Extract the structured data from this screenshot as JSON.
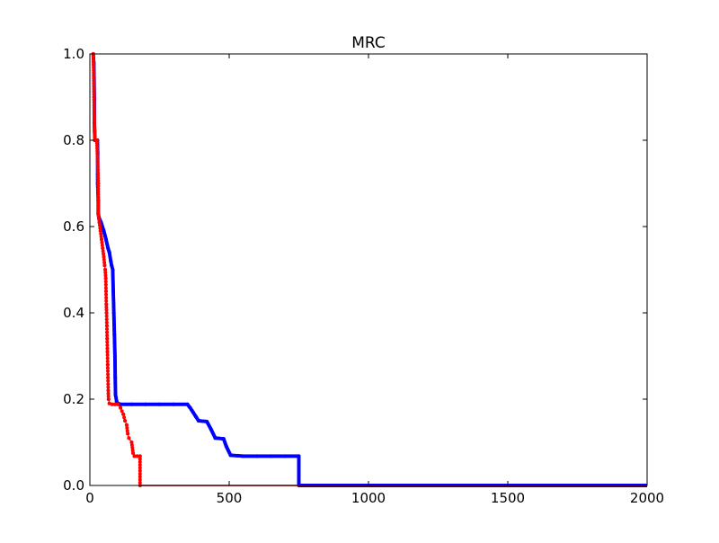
{
  "chart_data": {
    "type": "line",
    "title": "MRC",
    "xlabel": "",
    "ylabel": "",
    "xlim": [
      0,
      2000
    ],
    "ylim": [
      0,
      1.0
    ],
    "x_ticks": [
      "0",
      "500",
      "1000",
      "1500",
      "2000"
    ],
    "y_ticks": [
      "0.0",
      "0.2",
      "0.4",
      "0.6",
      "0.8",
      "1.0"
    ],
    "x_tick_values": [
      0,
      500,
      1000,
      1500,
      2000
    ],
    "y_tick_values": [
      0.0,
      0.2,
      0.4,
      0.6,
      0.8,
      1.0
    ],
    "grid": false,
    "series": [
      {
        "color": "#0000ff",
        "marker": "dot",
        "points": [
          [
            12,
            1.0
          ],
          [
            14,
            0.98
          ],
          [
            15,
            0.945
          ],
          [
            16,
            0.895
          ],
          [
            16,
            0.86
          ],
          [
            16,
            0.84
          ],
          [
            17,
            0.82
          ],
          [
            18,
            0.8
          ],
          [
            25,
            0.8
          ],
          [
            27,
            0.8
          ],
          [
            28,
            0.77
          ],
          [
            28,
            0.72
          ],
          [
            28,
            0.7
          ],
          [
            29,
            0.68
          ],
          [
            30,
            0.66
          ],
          [
            30,
            0.63
          ],
          [
            33,
            0.62
          ],
          [
            40,
            0.61
          ],
          [
            50,
            0.59
          ],
          [
            58,
            0.57
          ],
          [
            65,
            0.55
          ],
          [
            70,
            0.54
          ],
          [
            75,
            0.52
          ],
          [
            78,
            0.51
          ],
          [
            82,
            0.5
          ],
          [
            84,
            0.45
          ],
          [
            86,
            0.4
          ],
          [
            88,
            0.35
          ],
          [
            90,
            0.3
          ],
          [
            91,
            0.25
          ],
          [
            92,
            0.21
          ],
          [
            96,
            0.195
          ],
          [
            100,
            0.19
          ],
          [
            110,
            0.188
          ],
          [
            150,
            0.188
          ],
          [
            200,
            0.188
          ],
          [
            250,
            0.188
          ],
          [
            300,
            0.188
          ],
          [
            350,
            0.188
          ],
          [
            360,
            0.18
          ],
          [
            370,
            0.17
          ],
          [
            380,
            0.16
          ],
          [
            390,
            0.15
          ],
          [
            420,
            0.148
          ],
          [
            435,
            0.13
          ],
          [
            450,
            0.11
          ],
          [
            480,
            0.108
          ],
          [
            490,
            0.09
          ],
          [
            505,
            0.07
          ],
          [
            550,
            0.068
          ],
          [
            600,
            0.068
          ],
          [
            650,
            0.068
          ],
          [
            700,
            0.068
          ],
          [
            750,
            0.068
          ],
          [
            750,
            0.0
          ],
          [
            800,
            0.0
          ],
          [
            900,
            0.0
          ],
          [
            1000,
            0.0
          ],
          [
            1100,
            0.0
          ],
          [
            1200,
            0.0
          ],
          [
            1300,
            0.0
          ],
          [
            1400,
            0.0
          ],
          [
            1500,
            0.0
          ],
          [
            1600,
            0.0
          ],
          [
            1700,
            0.0
          ],
          [
            1800,
            0.0
          ],
          [
            1900,
            0.0
          ],
          [
            2000,
            0.0
          ]
        ]
      },
      {
        "color": "#ff0000",
        "marker": "dot",
        "points": [
          [
            12,
            1.0
          ],
          [
            14,
            0.95
          ],
          [
            15,
            0.9
          ],
          [
            16,
            0.85
          ],
          [
            18,
            0.8
          ],
          [
            25,
            0.8
          ],
          [
            28,
            0.75
          ],
          [
            30,
            0.7
          ],
          [
            30,
            0.63
          ],
          [
            34,
            0.61
          ],
          [
            38,
            0.59
          ],
          [
            42,
            0.57
          ],
          [
            46,
            0.55
          ],
          [
            50,
            0.53
          ],
          [
            53,
            0.51
          ],
          [
            55,
            0.5
          ],
          [
            57,
            0.48
          ],
          [
            58,
            0.45
          ],
          [
            59,
            0.42
          ],
          [
            60,
            0.4
          ],
          [
            61,
            0.37
          ],
          [
            62,
            0.34
          ],
          [
            63,
            0.31
          ],
          [
            64,
            0.28
          ],
          [
            65,
            0.25
          ],
          [
            66,
            0.22
          ],
          [
            67,
            0.2
          ],
          [
            70,
            0.19
          ],
          [
            80,
            0.188
          ],
          [
            90,
            0.188
          ],
          [
            100,
            0.188
          ],
          [
            110,
            0.18
          ],
          [
            120,
            0.165
          ],
          [
            126,
            0.15
          ],
          [
            132,
            0.14
          ],
          [
            136,
            0.12
          ],
          [
            140,
            0.11
          ],
          [
            150,
            0.1
          ],
          [
            155,
            0.075
          ],
          [
            160,
            0.068
          ],
          [
            170,
            0.068
          ],
          [
            180,
            0.068
          ],
          [
            180,
            0.0
          ],
          [
            300,
            0.0
          ],
          [
            500,
            0.0
          ],
          [
            750,
            0.0
          ],
          [
            1000,
            0.0
          ],
          [
            1500,
            0.0
          ],
          [
            2000,
            0.0
          ]
        ]
      }
    ]
  }
}
